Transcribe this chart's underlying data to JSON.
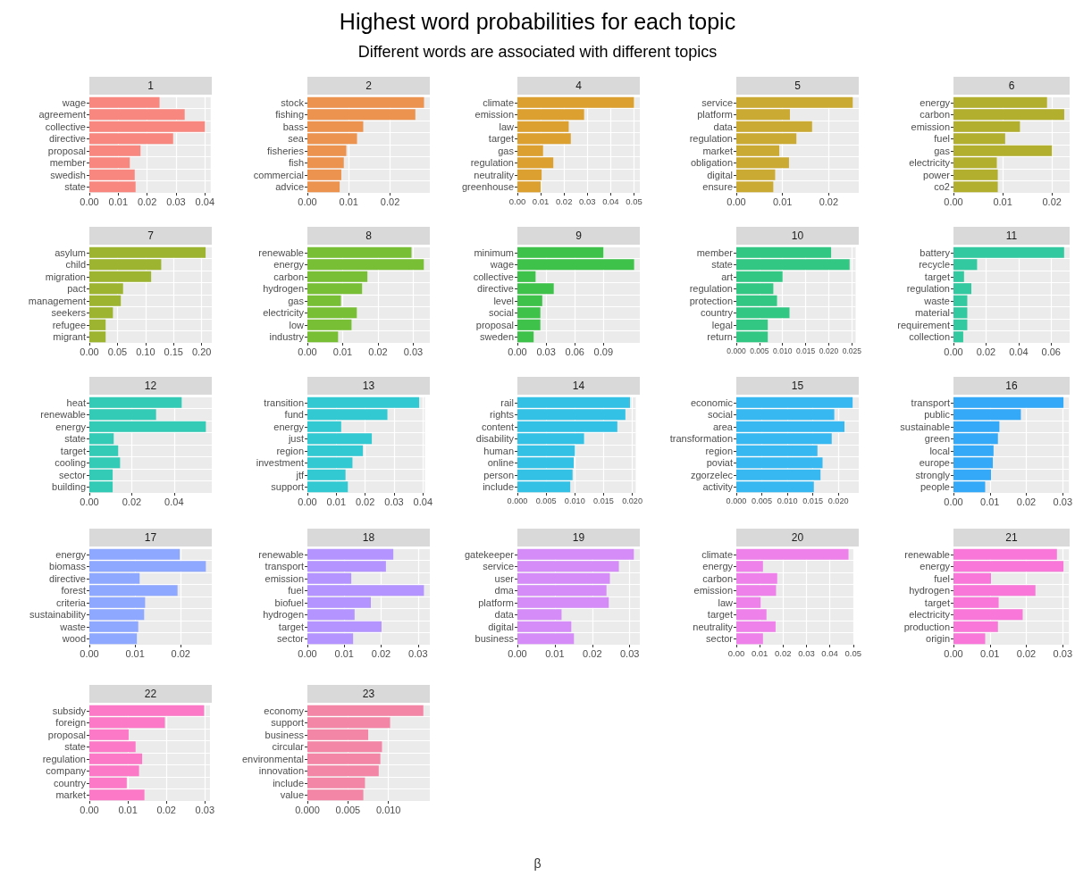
{
  "chart_data": [
    {
      "type": "other",
      "title": "Highest word probabilities for each topic",
      "subtitle": "Different words are associated with different topics",
      "xlabel": "β"
    },
    {
      "type": "bar",
      "orientation": "horizontal",
      "title": "1",
      "categories": [
        "wage",
        "agreement",
        "collective",
        "directive",
        "proposal",
        "member",
        "swedish",
        "state"
      ],
      "values": [
        0.0243,
        0.033,
        0.04,
        0.029,
        0.0177,
        0.014,
        0.0157,
        0.016
      ],
      "color": "#f8877f",
      "xlim": [
        0,
        0.042
      ],
      "xticks": [
        {
          "value": 0,
          "label": "0.00"
        },
        0.01,
        0.02,
        0.03,
        0.04
      ],
      "grid": true
    },
    {
      "type": "bar",
      "orientation": "horizontal",
      "title": "2",
      "categories": [
        "stock",
        "fishing",
        "bass",
        "sea",
        "fisheries",
        "fish",
        "commercial",
        "advice"
      ],
      "values": [
        0.0282,
        0.0261,
        0.0135,
        0.012,
        0.0094,
        0.0088,
        0.0082,
        0.0078
      ],
      "color": "#ec9350",
      "xlim": [
        0,
        0.0296
      ],
      "xticks": [
        {
          "value": 0,
          "label": "0.00"
        },
        0.01,
        0.02
      ],
      "grid": true
    },
    {
      "type": "bar",
      "orientation": "horizontal",
      "title": "4",
      "categories": [
        "climate",
        "emission",
        "law",
        "target",
        "gas",
        "regulation",
        "neutrality",
        "greenhouse"
      ],
      "values": [
        0.05,
        0.0286,
        0.022,
        0.0229,
        0.011,
        0.0154,
        0.0104,
        0.01
      ],
      "color": "#dca030",
      "xlim": [
        0,
        0.0525
      ],
      "xticks": [
        {
          "value": 0,
          "label": "0.00"
        },
        0.01,
        0.02,
        0.03,
        0.04,
        0.05
      ],
      "grid": true
    },
    {
      "type": "bar",
      "orientation": "horizontal",
      "title": "5",
      "categories": [
        "service",
        "platform",
        "data",
        "regulation",
        "market",
        "obligation",
        "digital",
        "ensure"
      ],
      "values": [
        0.0252,
        0.0116,
        0.0164,
        0.013,
        0.0093,
        0.0114,
        0.0084,
        0.008
      ],
      "color": "#cbaa33",
      "xlim": [
        0,
        0.0265
      ],
      "xticks": [
        {
          "value": 0,
          "label": "0.00"
        },
        0.01,
        0.02
      ],
      "grid": true
    },
    {
      "type": "bar",
      "orientation": "horizontal",
      "title": "6",
      "categories": [
        "energy",
        "carbon",
        "emission",
        "fuel",
        "gas",
        "electricity",
        "power",
        "co2"
      ],
      "values": [
        0.019,
        0.0225,
        0.0135,
        0.0105,
        0.02,
        0.0088,
        0.009,
        0.009
      ],
      "color": "#b2ae2e",
      "xlim": [
        0,
        0.0236
      ],
      "xticks": [
        {
          "value": 0,
          "label": "0.00"
        },
        0.01,
        0.02
      ],
      "grid": true
    },
    {
      "type": "bar",
      "orientation": "horizontal",
      "title": "7",
      "categories": [
        "asylum",
        "child",
        "migration",
        "pact",
        "management",
        "seekers",
        "refugee",
        "migrant"
      ],
      "values": [
        0.207,
        0.128,
        0.11,
        0.06,
        0.056,
        0.042,
        0.029,
        0.029
      ],
      "color": "#9cb42f",
      "xlim": [
        0,
        0.218
      ],
      "xticks": [
        {
          "value": 0,
          "label": "0.00"
        },
        0.05,
        {
          "value": 0.1,
          "label": "0.10"
        },
        0.15,
        {
          "value": 0.2,
          "label": "0.20"
        }
      ],
      "grid": true
    },
    {
      "type": "bar",
      "orientation": "horizontal",
      "title": "8",
      "categories": [
        "renewable",
        "energy",
        "carbon",
        "hydrogen",
        "gas",
        "electricity",
        "low",
        "industry"
      ],
      "values": [
        0.0295,
        0.033,
        0.017,
        0.0155,
        0.0095,
        0.014,
        0.0125,
        0.0087
      ],
      "color": "#79bf35",
      "xlim": [
        0,
        0.0347
      ],
      "xticks": [
        {
          "value": 0,
          "label": "0.00"
        },
        0.01,
        0.02,
        0.03
      ],
      "grid": true
    },
    {
      "type": "bar",
      "orientation": "horizontal",
      "title": "9",
      "categories": [
        "minimum",
        "wage",
        "collective",
        "directive",
        "level",
        "social",
        "proposal",
        "sweden"
      ],
      "values": [
        0.09,
        0.122,
        0.019,
        0.038,
        0.026,
        0.024,
        0.024,
        0.017
      ],
      "color": "#3ec24a",
      "xlim": [
        0,
        0.128
      ],
      "xticks": [
        {
          "value": 0,
          "label": "0.00"
        },
        0.03,
        0.06,
        0.09
      ],
      "grid": true
    },
    {
      "type": "bar",
      "orientation": "horizontal",
      "title": "10",
      "categories": [
        "member",
        "state",
        "art",
        "regulation",
        "protection",
        "country",
        "legal",
        "return"
      ],
      "values": [
        0.0205,
        0.0245,
        0.01,
        0.008,
        0.0088,
        0.0115,
        0.0068,
        0.0068
      ],
      "color": "#33c784",
      "xlim": [
        0,
        0.0258
      ],
      "xticks": [
        {
          "value": 0,
          "label": "0.000"
        },
        0.005,
        {
          "value": 0.01,
          "label": "0.010"
        },
        0.015,
        {
          "value": 0.02,
          "label": "0.020"
        },
        0.025
      ],
      "grid": true
    },
    {
      "type": "bar",
      "orientation": "horizontal",
      "title": "11",
      "categories": [
        "battery",
        "recycle",
        "target",
        "regulation",
        "waste",
        "material",
        "requirement",
        "collection"
      ],
      "values": [
        0.068,
        0.0145,
        0.0065,
        0.011,
        0.0085,
        0.0085,
        0.0085,
        0.006
      ],
      "color": "#33c9a0",
      "xlim": [
        0,
        0.0714
      ],
      "xticks": [
        {
          "value": 0,
          "label": "0.00"
        },
        0.02,
        0.04,
        0.06
      ],
      "grid": true
    },
    {
      "type": "bar",
      "orientation": "horizontal",
      "title": "12",
      "categories": [
        "heat",
        "renewable",
        "energy",
        "state",
        "target",
        "cooling",
        "sector",
        "building"
      ],
      "values": [
        0.0436,
        0.0315,
        0.055,
        0.0115,
        0.0136,
        0.0145,
        0.011,
        0.011
      ],
      "color": "#33cbb5",
      "xlim": [
        0,
        0.0578
      ],
      "xticks": [
        {
          "value": 0,
          "label": "0.00"
        },
        0.02,
        0.04
      ],
      "grid": true
    },
    {
      "type": "bar",
      "orientation": "horizontal",
      "title": "13",
      "categories": [
        "transition",
        "fund",
        "energy",
        "just",
        "region",
        "investment",
        "jtf",
        "support"
      ],
      "values": [
        0.0387,
        0.0277,
        0.0117,
        0.0223,
        0.0192,
        0.0156,
        0.0132,
        0.014
      ],
      "color": "#33c9d3",
      "xlim": [
        0,
        0.0407
      ],
      "xticks": [
        {
          "value": 0,
          "label": "0.00"
        },
        0.01,
        0.02,
        0.03,
        0.04
      ],
      "grid": true
    },
    {
      "type": "bar",
      "orientation": "horizontal",
      "title": "14",
      "categories": [
        "rail",
        "rights",
        "content",
        "disability",
        "human",
        "online",
        "person",
        "include"
      ],
      "values": [
        0.0196,
        0.0188,
        0.0174,
        0.0116,
        0.01,
        0.0098,
        0.0096,
        0.0092
      ],
      "color": "#33c2e6",
      "xlim": [
        0,
        0.0206
      ],
      "xticks": [
        {
          "value": 0,
          "label": "0.000"
        },
        0.005,
        {
          "value": 0.01,
          "label": "0.010"
        },
        0.015,
        {
          "value": 0.02,
          "label": "0.020"
        }
      ],
      "grid": true
    },
    {
      "type": "bar",
      "orientation": "horizontal",
      "title": "15",
      "categories": [
        "economic",
        "social",
        "area",
        "transformation",
        "region",
        "poviat",
        "zgorzelec",
        "activity"
      ],
      "values": [
        0.0228,
        0.0192,
        0.0212,
        0.0187,
        0.0159,
        0.0169,
        0.0165,
        0.0152
      ],
      "color": "#37b8f0",
      "xlim": [
        0,
        0.024
      ],
      "xticks": [
        {
          "value": 0,
          "label": "0.000"
        },
        0.005,
        {
          "value": 0.01,
          "label": "0.010"
        },
        0.015,
        {
          "value": 0.02,
          "label": "0.020"
        }
      ],
      "grid": true
    },
    {
      "type": "bar",
      "orientation": "horizontal",
      "title": "16",
      "categories": [
        "transport",
        "public",
        "sustainable",
        "green",
        "local",
        "europe",
        "strongly",
        "people"
      ],
      "values": [
        0.0302,
        0.0185,
        0.0126,
        0.0122,
        0.011,
        0.0108,
        0.0103,
        0.0087
      ],
      "color": "#33a9f7",
      "xlim": [
        0,
        0.0317
      ],
      "xticks": [
        {
          "value": 0,
          "label": "0.00"
        },
        0.01,
        0.02,
        0.03
      ],
      "grid": true
    },
    {
      "type": "bar",
      "orientation": "horizontal",
      "title": "17",
      "categories": [
        "energy",
        "biomass",
        "directive",
        "forest",
        "criteria",
        "sustainability",
        "waste",
        "wood"
      ],
      "values": [
        0.0198,
        0.0255,
        0.011,
        0.0193,
        0.0122,
        0.012,
        0.0107,
        0.0104
      ],
      "color": "#8fa8ff",
      "xlim": [
        0,
        0.0268
      ],
      "xticks": [
        {
          "value": 0,
          "label": "0.00"
        },
        0.01,
        0.02
      ],
      "grid": true
    },
    {
      "type": "bar",
      "orientation": "horizontal",
      "title": "18",
      "categories": [
        "renewable",
        "transport",
        "emission",
        "fuel",
        "biofuel",
        "hydrogen",
        "target",
        "sector"
      ],
      "values": [
        0.0233,
        0.0213,
        0.0119,
        0.0316,
        0.0172,
        0.0128,
        0.0201,
        0.0124
      ],
      "color": "#b494ff",
      "xlim": [
        0,
        0.0332
      ],
      "xticks": [
        {
          "value": 0,
          "label": "0.00"
        },
        0.01,
        0.02,
        0.03
      ],
      "grid": true
    },
    {
      "type": "bar",
      "orientation": "horizontal",
      "title": "19",
      "categories": [
        "gatekeeper",
        "service",
        "user",
        "dma",
        "platform",
        "data",
        "digital",
        "business"
      ],
      "values": [
        0.0311,
        0.0271,
        0.0247,
        0.0238,
        0.0244,
        0.0118,
        0.0144,
        0.0151
      ],
      "color": "#d58cf8",
      "xlim": [
        0,
        0.0327
      ],
      "xticks": [
        {
          "value": 0,
          "label": "0.00"
        },
        0.01,
        0.02,
        0.03
      ],
      "grid": true
    },
    {
      "type": "bar",
      "orientation": "horizontal",
      "title": "20",
      "categories": [
        "climate",
        "energy",
        "carbon",
        "emission",
        "law",
        "target",
        "neutrality",
        "sector"
      ],
      "values": [
        0.048,
        0.0114,
        0.0175,
        0.017,
        0.0104,
        0.0129,
        0.0168,
        0.0114
      ],
      "color": "#ee82ea",
      "xlim": [
        0,
        0.0504
      ],
      "xticks": [
        {
          "value": 0,
          "label": "0.00"
        },
        0.01,
        0.02,
        0.03,
        0.04,
        0.05
      ],
      "grid": true
    },
    {
      "type": "bar",
      "orientation": "horizontal",
      "title": "21",
      "categories": [
        "renewable",
        "energy",
        "fuel",
        "hydrogen",
        "target",
        "electricity",
        "production",
        "origin"
      ],
      "values": [
        0.0284,
        0.0302,
        0.0103,
        0.0225,
        0.0124,
        0.019,
        0.0122,
        0.0087
      ],
      "color": "#f877d8",
      "xlim": [
        0,
        0.0317
      ],
      "xticks": [
        {
          "value": 0,
          "label": "0.00"
        },
        0.01,
        0.02,
        0.03
      ],
      "grid": true
    },
    {
      "type": "bar",
      "orientation": "horizontal",
      "title": "22",
      "categories": [
        "subsidy",
        "foreign",
        "proposal",
        "state",
        "regulation",
        "company",
        "country",
        "market"
      ],
      "values": [
        0.0298,
        0.0196,
        0.0102,
        0.012,
        0.0137,
        0.0129,
        0.0097,
        0.0143
      ],
      "color": "#fb79c6",
      "xlim": [
        0,
        0.0313
      ],
      "xticks": [
        {
          "value": 0,
          "label": "0.00"
        },
        0.01,
        0.02,
        0.03
      ],
      "grid": true
    },
    {
      "type": "bar",
      "orientation": "horizontal",
      "title": "23",
      "categories": [
        "economy",
        "support",
        "business",
        "circular",
        "environmental",
        "innovation",
        "include",
        "value"
      ],
      "values": [
        0.0143,
        0.0102,
        0.0075,
        0.0092,
        0.009,
        0.0088,
        0.0071,
        0.0069
      ],
      "color": "#f386a6",
      "xlim": [
        0,
        0.0151
      ],
      "xticks": [
        {
          "value": 0,
          "label": "0.000"
        },
        0.005,
        {
          "value": 0.01,
          "label": "0.010"
        }
      ],
      "grid": true
    }
  ]
}
